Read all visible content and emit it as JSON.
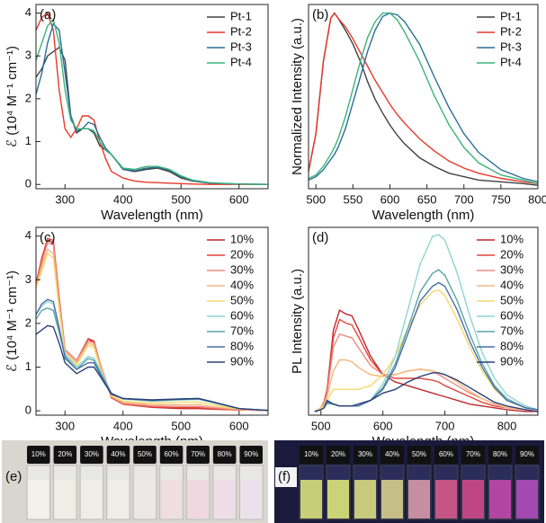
{
  "chart_data": [
    {
      "type": "line",
      "panel": "(a)",
      "xlabel": "Wavelength (nm)",
      "ylabel": "ℰ (10⁴ M⁻¹ cm⁻¹)",
      "xlim": [
        250,
        650
      ],
      "xticks": [
        300,
        400,
        500,
        600
      ],
      "ylim": [
        -0.1,
        4.2
      ],
      "yticks": [
        0,
        1,
        2,
        3,
        4
      ],
      "legend": "upper right",
      "x": [
        250,
        260,
        270,
        280,
        290,
        300,
        310,
        320,
        330,
        340,
        350,
        360,
        370,
        380,
        400,
        420,
        440,
        460,
        480,
        500,
        520,
        550,
        600,
        650
      ],
      "series": [
        {
          "name": "Pt-1",
          "color": "#404040",
          "values": [
            2.5,
            2.7,
            3.0,
            3.1,
            3.2,
            2.9,
            1.6,
            1.2,
            1.3,
            1.3,
            1.2,
            0.9,
            0.8,
            0.7,
            0.35,
            0.3,
            0.35,
            0.38,
            0.3,
            0.15,
            0.08,
            0.03,
            0.01,
            0
          ]
        },
        {
          "name": "Pt-2",
          "color": "#e8382b",
          "values": [
            3.6,
            3.9,
            4.0,
            3.6,
            2.2,
            1.3,
            1.1,
            1.3,
            1.6,
            1.6,
            1.5,
            1.0,
            0.6,
            0.3,
            0.15,
            0.08,
            0.05,
            0.04,
            0.03,
            0.02,
            0.01,
            0,
            0,
            0
          ]
        },
        {
          "name": "Pt-3",
          "color": "#2a6f97",
          "values": [
            2.1,
            2.6,
            3.3,
            3.75,
            3.6,
            2.6,
            1.6,
            1.25,
            1.3,
            1.45,
            1.4,
            1.1,
            0.85,
            0.7,
            0.35,
            0.32,
            0.38,
            0.4,
            0.33,
            0.18,
            0.09,
            0.03,
            0.01,
            0
          ]
        },
        {
          "name": "Pt-4",
          "color": "#3cb37a",
          "values": [
            2.9,
            3.3,
            3.7,
            3.85,
            3.3,
            2.2,
            1.5,
            1.3,
            1.3,
            1.3,
            1.25,
            1.0,
            0.8,
            0.7,
            0.38,
            0.35,
            0.42,
            0.42,
            0.35,
            0.2,
            0.1,
            0.04,
            0.01,
            0
          ]
        }
      ]
    },
    {
      "type": "line",
      "panel": "(b)",
      "xlabel": "Wavelength (nm)",
      "ylabel": "Normalized Intensity (a.u.)",
      "xlim": [
        490,
        800
      ],
      "xticks": [
        500,
        550,
        600,
        650,
        700,
        750,
        800
      ],
      "ylim": [
        -0.02,
        1.05
      ],
      "legend": "upper right",
      "x": [
        490,
        500,
        510,
        520,
        525,
        530,
        540,
        550,
        560,
        570,
        580,
        590,
        600,
        610,
        620,
        640,
        660,
        680,
        700,
        720,
        750,
        780,
        800
      ],
      "series": [
        {
          "name": "Pt-1",
          "color": "#404040",
          "values": [
            0.08,
            0.3,
            0.72,
            0.97,
            1.0,
            0.97,
            0.9,
            0.82,
            0.72,
            0.6,
            0.5,
            0.42,
            0.35,
            0.29,
            0.24,
            0.16,
            0.11,
            0.07,
            0.05,
            0.03,
            0.02,
            0.01,
            0
          ]
        },
        {
          "name": "Pt-2",
          "color": "#e8382b",
          "values": [
            0.08,
            0.3,
            0.72,
            0.97,
            1.0,
            0.97,
            0.92,
            0.85,
            0.77,
            0.69,
            0.61,
            0.54,
            0.47,
            0.41,
            0.36,
            0.27,
            0.2,
            0.14,
            0.1,
            0.07,
            0.04,
            0.02,
            0.01
          ]
        },
        {
          "name": "Pt-3",
          "color": "#2a6f97",
          "values": [
            0.03,
            0.05,
            0.09,
            0.15,
            0.18,
            0.22,
            0.33,
            0.48,
            0.63,
            0.78,
            0.9,
            0.98,
            1.0,
            0.99,
            0.95,
            0.82,
            0.63,
            0.45,
            0.3,
            0.19,
            0.09,
            0.04,
            0.02
          ]
        },
        {
          "name": "Pt-4",
          "color": "#3cb37a",
          "values": [
            0.04,
            0.06,
            0.11,
            0.18,
            0.22,
            0.27,
            0.4,
            0.56,
            0.72,
            0.86,
            0.95,
            1.0,
            1.0,
            0.96,
            0.89,
            0.72,
            0.52,
            0.35,
            0.22,
            0.13,
            0.06,
            0.03,
            0.01
          ]
        }
      ]
    },
    {
      "type": "line",
      "panel": "(c)",
      "xlabel": "Wavelength (nm)",
      "ylabel": "ℰ (10⁴ M⁻¹ cm⁻¹)",
      "xlim": [
        250,
        650
      ],
      "xticks": [
        300,
        400,
        500,
        600
      ],
      "ylim": [
        -0.1,
        4.2
      ],
      "yticks": [
        0,
        1,
        2,
        3,
        4
      ],
      "legend": "upper right",
      "x": [
        250,
        260,
        270,
        280,
        290,
        300,
        320,
        340,
        350,
        360,
        380,
        400,
        450,
        500,
        530,
        550,
        600,
        650
      ],
      "series": [
        {
          "name": "10%",
          "color": "#c0272d",
          "values": [
            2.9,
            3.5,
            3.9,
            3.85,
            2.5,
            1.4,
            1.15,
            1.65,
            1.55,
            1.1,
            0.3,
            0.15,
            0.08,
            0.05,
            0.05,
            0.04,
            0.02,
            0.01
          ]
        },
        {
          "name": "20%",
          "color": "#e0473c",
          "values": [
            2.9,
            3.5,
            3.95,
            3.9,
            2.6,
            1.4,
            1.15,
            1.65,
            1.6,
            1.1,
            0.3,
            0.15,
            0.09,
            0.07,
            0.07,
            0.05,
            0.02,
            0.01
          ]
        },
        {
          "name": "30%",
          "color": "#ee8a82",
          "values": [
            2.85,
            3.4,
            3.85,
            3.8,
            2.5,
            1.4,
            1.15,
            1.6,
            1.55,
            1.1,
            0.32,
            0.17,
            0.11,
            0.1,
            0.1,
            0.07,
            0.03,
            0.01
          ]
        },
        {
          "name": "40%",
          "color": "#f5b77b",
          "values": [
            2.8,
            3.3,
            3.7,
            3.6,
            2.4,
            1.35,
            1.1,
            1.55,
            1.5,
            1.05,
            0.33,
            0.19,
            0.14,
            0.14,
            0.14,
            0.1,
            0.03,
            0.01
          ]
        },
        {
          "name": "50%",
          "color": "#f6d96b",
          "values": [
            2.8,
            3.2,
            3.6,
            3.5,
            2.3,
            1.3,
            1.05,
            1.5,
            1.45,
            1.0,
            0.35,
            0.22,
            0.18,
            0.2,
            0.2,
            0.15,
            0.04,
            0.01
          ]
        },
        {
          "name": "60%",
          "color": "#8ed6cf",
          "values": [
            2.2,
            2.4,
            2.5,
            2.45,
            1.9,
            1.3,
            1.0,
            1.25,
            1.2,
            0.95,
            0.4,
            0.27,
            0.22,
            0.25,
            0.26,
            0.2,
            0.05,
            0.01
          ]
        },
        {
          "name": "70%",
          "color": "#5aa3a8",
          "values": [
            2.1,
            2.3,
            2.35,
            2.3,
            1.8,
            1.25,
            0.95,
            1.2,
            1.15,
            0.9,
            0.4,
            0.28,
            0.23,
            0.26,
            0.27,
            0.21,
            0.05,
            0.01
          ]
        },
        {
          "name": "80%",
          "color": "#4a6fa5",
          "values": [
            2.2,
            2.45,
            2.55,
            2.5,
            1.9,
            1.2,
            0.95,
            1.1,
            1.1,
            0.85,
            0.4,
            0.28,
            0.24,
            0.27,
            0.28,
            0.22,
            0.05,
            0.01
          ]
        },
        {
          "name": "90%",
          "color": "#2b3f7a",
          "values": [
            1.75,
            1.85,
            1.95,
            1.92,
            1.55,
            1.1,
            0.85,
            1.0,
            1.0,
            0.8,
            0.38,
            0.28,
            0.25,
            0.27,
            0.28,
            0.22,
            0.05,
            0.01
          ]
        }
      ]
    },
    {
      "type": "line",
      "panel": "(d)",
      "xlabel": "Wavelength (nm)",
      "ylabel": "PL Intensity (a.u.)",
      "xlim": [
        480,
        850
      ],
      "xticks": [
        500,
        600,
        700,
        800
      ],
      "ylim": [
        -0.02,
        1.0
      ],
      "legend": "upper right",
      "x": [
        490,
        500,
        505,
        510,
        520,
        530,
        540,
        550,
        560,
        580,
        600,
        620,
        640,
        660,
        680,
        690,
        700,
        720,
        740,
        760,
        780,
        800,
        830,
        850
      ],
      "series": [
        {
          "name": "10%",
          "color": "#c0272d",
          "values": [
            0,
            0.02,
            0.05,
            0.12,
            0.44,
            0.55,
            0.53,
            0.52,
            0.45,
            0.3,
            0.2,
            0.16,
            0.14,
            0.12,
            0.1,
            0.09,
            0.08,
            0.06,
            0.04,
            0.03,
            0.02,
            0.01,
            0,
            0
          ]
        },
        {
          "name": "20%",
          "color": "#e0473c",
          "values": [
            0,
            0.02,
            0.05,
            0.12,
            0.4,
            0.5,
            0.48,
            0.47,
            0.41,
            0.28,
            0.2,
            0.18,
            0.18,
            0.18,
            0.17,
            0.16,
            0.14,
            0.11,
            0.08,
            0.05,
            0.03,
            0.02,
            0.01,
            0
          ]
        },
        {
          "name": "30%",
          "color": "#ee8a82",
          "values": [
            0,
            0.02,
            0.04,
            0.1,
            0.35,
            0.42,
            0.41,
            0.4,
            0.35,
            0.25,
            0.2,
            0.2,
            0.22,
            0.23,
            0.22,
            0.2,
            0.18,
            0.14,
            0.1,
            0.07,
            0.04,
            0.02,
            0.01,
            0
          ]
        },
        {
          "name": "40%",
          "color": "#f5b77b",
          "values": [
            0,
            0.02,
            0.04,
            0.08,
            0.22,
            0.28,
            0.28,
            0.27,
            0.24,
            0.2,
            0.19,
            0.2,
            0.22,
            0.23,
            0.22,
            0.21,
            0.2,
            0.16,
            0.11,
            0.07,
            0.04,
            0.02,
            0.01,
            0
          ]
        },
        {
          "name": "50%",
          "color": "#f6d96b",
          "values": [
            0,
            0.02,
            0.03,
            0.06,
            0.12,
            0.12,
            0.12,
            0.12,
            0.12,
            0.14,
            0.2,
            0.3,
            0.45,
            0.58,
            0.65,
            0.66,
            0.63,
            0.5,
            0.35,
            0.22,
            0.12,
            0.06,
            0.02,
            0.01
          ]
        },
        {
          "name": "60%",
          "color": "#8ed6cf",
          "values": [
            0,
            0.01,
            0.02,
            0.04,
            0.04,
            0.03,
            0.03,
            0.03,
            0.03,
            0.06,
            0.15,
            0.3,
            0.55,
            0.8,
            0.95,
            0.96,
            0.93,
            0.75,
            0.52,
            0.32,
            0.18,
            0.09,
            0.03,
            0.01
          ]
        },
        {
          "name": "70%",
          "color": "#5aa3a8",
          "values": [
            0,
            0.01,
            0.02,
            0.05,
            0.04,
            0.03,
            0.03,
            0.03,
            0.03,
            0.06,
            0.13,
            0.26,
            0.45,
            0.65,
            0.75,
            0.77,
            0.74,
            0.6,
            0.42,
            0.26,
            0.14,
            0.07,
            0.02,
            0.01
          ]
        },
        {
          "name": "80%",
          "color": "#4a6fa5",
          "values": [
            0,
            0.01,
            0.02,
            0.05,
            0.04,
            0.03,
            0.03,
            0.03,
            0.03,
            0.06,
            0.12,
            0.24,
            0.42,
            0.6,
            0.68,
            0.7,
            0.68,
            0.55,
            0.38,
            0.24,
            0.13,
            0.06,
            0.02,
            0.01
          ]
        },
        {
          "name": "90%",
          "color": "#2b3f7a",
          "values": [
            0,
            0.01,
            0.02,
            0.06,
            0.04,
            0.03,
            0.03,
            0.03,
            0.04,
            0.06,
            0.1,
            0.12,
            0.16,
            0.19,
            0.21,
            0.21,
            0.2,
            0.17,
            0.13,
            0.09,
            0.05,
            0.03,
            0.01,
            0
          ]
        }
      ]
    }
  ],
  "photos": [
    {
      "panel": "(e)",
      "vials": [
        "10%",
        "20%",
        "30%",
        "40%",
        "50%",
        "60%",
        "70%",
        "80%",
        "90%"
      ]
    },
    {
      "panel": "(f)",
      "vials": [
        "10%",
        "20%",
        "30%",
        "40%",
        "50%",
        "60%",
        "70%",
        "80%",
        "90%"
      ]
    }
  ]
}
